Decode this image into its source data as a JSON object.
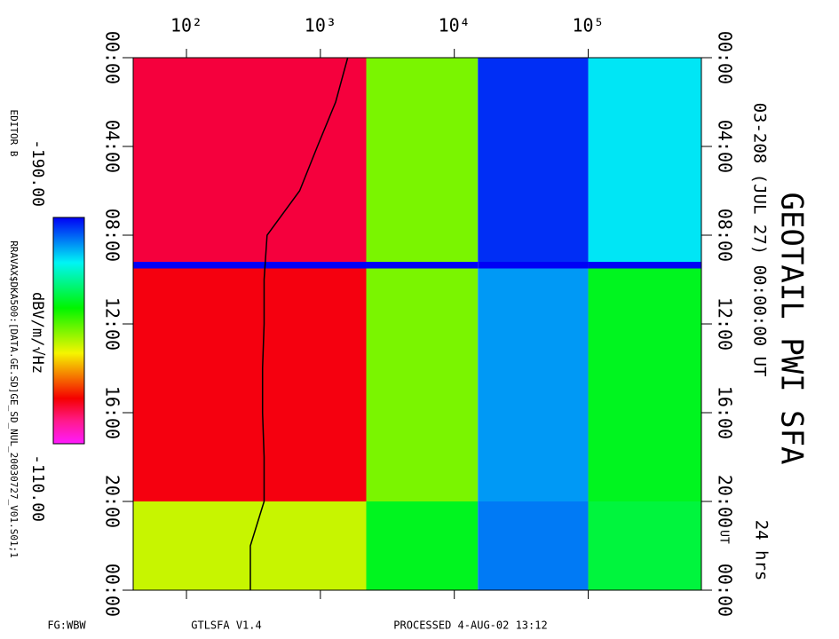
{
  "chart_data": {
    "type": "heatmap",
    "title": "GEOTAIL PWI SFA",
    "subtitle": "03-208 (JUL 27) 00:00:00 UT",
    "duration": "24 hrs",
    "time_unit": "UT",
    "editor": "EDITOR B",
    "file": "RRAVAX$DKA500:[DATA.GE.SD]GE_SD_NUL_20030727_V01.S01;1",
    "colorbar_label": "dBV/m/√Hz",
    "clim": [
      -190,
      -110
    ],
    "colorbar_ticks": [
      {
        "value": -190,
        "label": "-190.00"
      },
      {
        "value": -110,
        "label": "-110.00"
      }
    ],
    "footer": [
      "FG:WBW",
      "GTLSFA   V1.4",
      "PROCESSED   4-AUG-02   13:12"
    ],
    "xscale": "log",
    "xlim": [
      40,
      700000
    ],
    "xticks": [
      {
        "value": 100,
        "label": "10²"
      },
      {
        "value": 1000,
        "label": "10³"
      },
      {
        "value": 10000,
        "label": "10⁴"
      },
      {
        "value": 100000,
        "label": "10⁵"
      }
    ],
    "ylim": [
      0,
      24
    ],
    "yticks": [
      {
        "value": 0,
        "label": "00:00"
      },
      {
        "value": 4,
        "label": "04:00"
      },
      {
        "value": 8,
        "label": "08:00"
      },
      {
        "value": 12,
        "label": "12:00"
      },
      {
        "value": 16,
        "label": "16:00"
      },
      {
        "value": 20,
        "label": "20:00"
      },
      {
        "value": 24,
        "label": "00:00"
      }
    ],
    "freq_edges": [
      40,
      2200,
      15000,
      100000,
      700000
    ],
    "time_edges": [
      0,
      9.2,
      9.5,
      20,
      24
    ],
    "values": [
      [
        -122,
        -150,
        -187,
        -175
      ],
      [
        -190,
        -190,
        -190,
        -190
      ],
      [
        -125,
        -150,
        -180,
        -160
      ],
      [
        -145,
        -160,
        -182,
        -162
      ]
    ],
    "trace": {
      "t": [
        0,
        2,
        4,
        6,
        8,
        10,
        12,
        14,
        16,
        18,
        20,
        22,
        24
      ],
      "f": [
        1600,
        1300,
        950,
        700,
        400,
        380,
        380,
        370,
        370,
        380,
        380,
        300,
        300
      ]
    }
  }
}
